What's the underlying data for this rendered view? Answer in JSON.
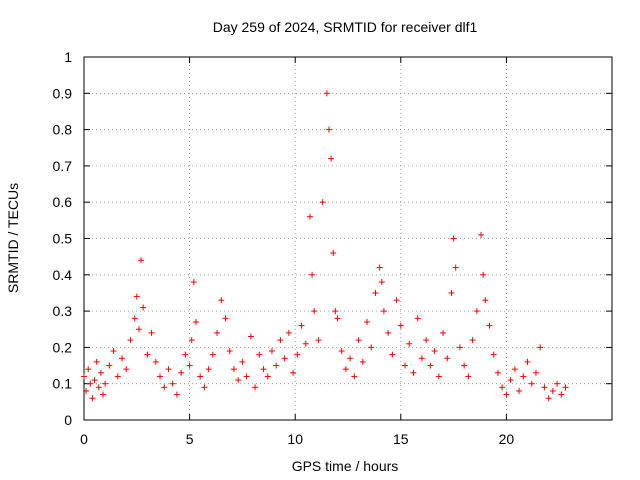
{
  "chart_data": {
    "type": "scatter",
    "title": "Day 259 of 2024, SRMTID for receiver dlf1",
    "xlabel": "GPS time / hours",
    "ylabel": "SRMTID / TECUs",
    "xlim": [
      0,
      25
    ],
    "ylim": [
      0,
      1
    ],
    "x_ticks": [
      0,
      5,
      10,
      15,
      20
    ],
    "x_tick_labels": [
      "0",
      "5",
      "10",
      "15",
      "20"
    ],
    "y_ticks": [
      0,
      0.1,
      0.2,
      0.3,
      0.4,
      0.5,
      0.6,
      0.7,
      0.8,
      0.9,
      1
    ],
    "y_tick_labels": [
      "0",
      "0.1",
      "0.2",
      "0.3",
      "0.4",
      "0.5",
      "0.6",
      "0.7",
      "0.8",
      "0.9",
      "1"
    ],
    "grid": true,
    "marker": "+",
    "series": [
      {
        "name": "dlf1",
        "color": "#ff0000",
        "x": [
          0.0,
          0.1,
          0.2,
          0.3,
          0.4,
          0.5,
          0.6,
          0.7,
          0.8,
          0.9,
          1.0,
          1.2,
          1.4,
          1.6,
          1.8,
          2.0,
          2.2,
          2.4,
          2.5,
          2.6,
          2.7,
          2.8,
          3.0,
          3.2,
          3.4,
          3.6,
          3.8,
          4.0,
          4.2,
          4.4,
          4.6,
          4.8,
          5.0,
          5.1,
          5.2,
          5.3,
          5.5,
          5.7,
          5.9,
          6.1,
          6.3,
          6.5,
          6.7,
          6.9,
          7.1,
          7.3,
          7.5,
          7.7,
          7.9,
          8.1,
          8.3,
          8.5,
          8.7,
          8.9,
          9.1,
          9.3,
          9.5,
          9.7,
          9.9,
          10.1,
          10.3,
          10.5,
          10.7,
          10.8,
          10.9,
          11.1,
          11.3,
          11.5,
          11.6,
          11.7,
          11.8,
          11.9,
          12.0,
          12.2,
          12.4,
          12.6,
          12.8,
          13.0,
          13.2,
          13.4,
          13.6,
          13.8,
          14.0,
          14.1,
          14.2,
          14.4,
          14.6,
          14.8,
          15.0,
          15.2,
          15.4,
          15.6,
          15.8,
          16.0,
          16.2,
          16.4,
          16.6,
          16.8,
          17.0,
          17.2,
          17.4,
          17.5,
          17.6,
          17.8,
          18.0,
          18.2,
          18.4,
          18.6,
          18.8,
          18.9,
          19.0,
          19.2,
          19.4,
          19.6,
          19.8,
          20.0,
          20.2,
          20.4,
          20.6,
          20.8,
          21.0,
          21.2,
          21.4,
          21.6,
          21.8,
          22.0,
          22.2,
          22.4,
          22.6,
          22.8
        ],
        "values": [
          0.12,
          0.08,
          0.14,
          0.1,
          0.06,
          0.11,
          0.16,
          0.09,
          0.13,
          0.07,
          0.1,
          0.15,
          0.19,
          0.12,
          0.17,
          0.14,
          0.22,
          0.28,
          0.34,
          0.25,
          0.44,
          0.31,
          0.18,
          0.24,
          0.16,
          0.12,
          0.09,
          0.14,
          0.1,
          0.07,
          0.13,
          0.18,
          0.15,
          0.22,
          0.38,
          0.27,
          0.12,
          0.09,
          0.14,
          0.18,
          0.24,
          0.33,
          0.28,
          0.19,
          0.14,
          0.11,
          0.16,
          0.12,
          0.23,
          0.09,
          0.18,
          0.14,
          0.12,
          0.19,
          0.15,
          0.22,
          0.17,
          0.24,
          0.13,
          0.18,
          0.26,
          0.21,
          0.56,
          0.4,
          0.3,
          0.22,
          0.6,
          0.9,
          0.8,
          0.72,
          0.46,
          0.3,
          0.28,
          0.19,
          0.14,
          0.17,
          0.12,
          0.22,
          0.16,
          0.27,
          0.2,
          0.35,
          0.42,
          0.38,
          0.3,
          0.24,
          0.18,
          0.33,
          0.26,
          0.15,
          0.21,
          0.13,
          0.28,
          0.17,
          0.22,
          0.15,
          0.19,
          0.12,
          0.24,
          0.17,
          0.35,
          0.5,
          0.42,
          0.2,
          0.15,
          0.12,
          0.22,
          0.3,
          0.51,
          0.4,
          0.33,
          0.26,
          0.18,
          0.13,
          0.09,
          0.07,
          0.11,
          0.14,
          0.08,
          0.12,
          0.16,
          0.1,
          0.13,
          0.2,
          0.09,
          0.06,
          0.08,
          0.1,
          0.07,
          0.09
        ]
      }
    ]
  }
}
